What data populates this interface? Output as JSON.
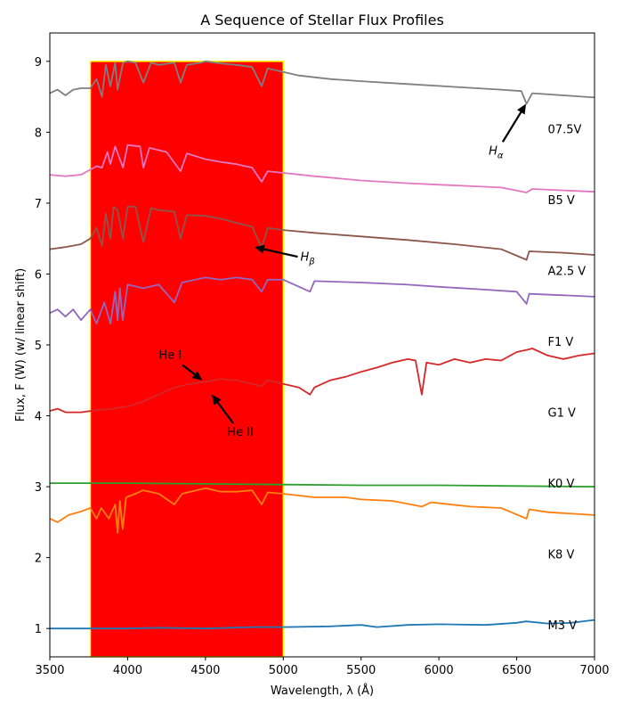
{
  "chart_data": {
    "type": "line",
    "title": "A Sequence of Stellar Flux Profiles",
    "xlabel": "Wavelength, λ (Å)",
    "ylabel": "Flux, F (W) (w/ linear shift)",
    "xlim": [
      3500,
      7000
    ],
    "ylim": [
      0.6,
      9.4
    ],
    "x_ticks": [
      3500,
      4000,
      4500,
      5000,
      5500,
      6000,
      6500,
      7000
    ],
    "y_ticks": [
      1,
      2,
      3,
      4,
      5,
      6,
      7,
      8,
      9
    ],
    "grid": false,
    "highlight_band": {
      "x": [
        3760,
        5000
      ],
      "y": [
        0.6,
        9.0
      ],
      "fill": "#ff0000",
      "edge": "#ffff00"
    },
    "series": [
      {
        "name": "M3 V",
        "color": "#1f77b4",
        "label_pos": [
          6700,
          1.05
        ],
        "points": [
          [
            3500,
            1.0
          ],
          [
            3800,
            1.0
          ],
          [
            4000,
            1.0
          ],
          [
            4200,
            1.01
          ],
          [
            4500,
            1.0
          ],
          [
            4800,
            1.02
          ],
          [
            5000,
            1.02
          ],
          [
            5300,
            1.03
          ],
          [
            5500,
            1.05
          ],
          [
            5600,
            1.02
          ],
          [
            5800,
            1.05
          ],
          [
            6000,
            1.06
          ],
          [
            6300,
            1.05
          ],
          [
            6500,
            1.08
          ],
          [
            6560,
            1.1
          ],
          [
            6700,
            1.07
          ],
          [
            6850,
            1.08
          ],
          [
            7000,
            1.12
          ]
        ]
      },
      {
        "name": "K8 V",
        "color": "#ff7f0e",
        "label_pos": [
          6700,
          2.05
        ],
        "points": [
          [
            3500,
            2.55
          ],
          [
            3550,
            2.5
          ],
          [
            3620,
            2.6
          ],
          [
            3700,
            2.65
          ],
          [
            3760,
            2.7
          ],
          [
            3800,
            2.55
          ],
          [
            3830,
            2.7
          ],
          [
            3880,
            2.55
          ],
          [
            3920,
            2.75
          ],
          [
            3935,
            2.35
          ],
          [
            3950,
            2.8
          ],
          [
            3968,
            2.4
          ],
          [
            3990,
            2.85
          ],
          [
            4050,
            2.9
          ],
          [
            4100,
            2.95
          ],
          [
            4200,
            2.9
          ],
          [
            4300,
            2.75
          ],
          [
            4350,
            2.9
          ],
          [
            4500,
            2.98
          ],
          [
            4600,
            2.93
          ],
          [
            4700,
            2.93
          ],
          [
            4800,
            2.95
          ],
          [
            4861,
            2.75
          ],
          [
            4900,
            2.92
          ],
          [
            5000,
            2.9
          ],
          [
            5200,
            2.85
          ],
          [
            5400,
            2.85
          ],
          [
            5500,
            2.82
          ],
          [
            5700,
            2.8
          ],
          [
            5890,
            2.72
          ],
          [
            5950,
            2.78
          ],
          [
            6200,
            2.72
          ],
          [
            6400,
            2.7
          ],
          [
            6563,
            2.55
          ],
          [
            6580,
            2.68
          ],
          [
            6700,
            2.64
          ],
          [
            7000,
            2.6
          ]
        ]
      },
      {
        "name": "K0 V",
        "color": "#2ca02c",
        "label_pos": [
          6700,
          3.05
        ],
        "points": [
          [
            3500,
            3.05
          ],
          [
            4000,
            3.05
          ],
          [
            4500,
            3.04
          ],
          [
            5000,
            3.03
          ],
          [
            5500,
            3.02
          ],
          [
            6000,
            3.02
          ],
          [
            6500,
            3.01
          ],
          [
            7000,
            3.0
          ]
        ]
      },
      {
        "name": "G1 V",
        "color": "#d62728",
        "label_pos": [
          6700,
          4.05
        ],
        "points": [
          [
            3500,
            4.07
          ],
          [
            3550,
            4.1
          ],
          [
            3600,
            4.05
          ],
          [
            3700,
            4.05
          ],
          [
            3800,
            4.08
          ],
          [
            3900,
            4.1
          ],
          [
            4000,
            4.13
          ],
          [
            4100,
            4.2
          ],
          [
            4200,
            4.3
          ],
          [
            4300,
            4.4
          ],
          [
            4400,
            4.45
          ],
          [
            4500,
            4.48
          ],
          [
            4600,
            4.52
          ],
          [
            4700,
            4.5
          ],
          [
            4800,
            4.45
          ],
          [
            4861,
            4.42
          ],
          [
            4900,
            4.5
          ],
          [
            5000,
            4.45
          ],
          [
            5100,
            4.4
          ],
          [
            5172,
            4.3
          ],
          [
            5200,
            4.4
          ],
          [
            5300,
            4.5
          ],
          [
            5400,
            4.55
          ],
          [
            5500,
            4.62
          ],
          [
            5600,
            4.68
          ],
          [
            5700,
            4.75
          ],
          [
            5800,
            4.8
          ],
          [
            5850,
            4.78
          ],
          [
            5890,
            4.3
          ],
          [
            5920,
            4.75
          ],
          [
            6000,
            4.72
          ],
          [
            6100,
            4.8
          ],
          [
            6200,
            4.75
          ],
          [
            6300,
            4.8
          ],
          [
            6400,
            4.78
          ],
          [
            6500,
            4.9
          ],
          [
            6563,
            4.93
          ],
          [
            6600,
            4.95
          ],
          [
            6700,
            4.85
          ],
          [
            6800,
            4.8
          ],
          [
            6900,
            4.85
          ],
          [
            7000,
            4.88
          ]
        ]
      },
      {
        "name": "F1 V",
        "color": "#9467bd",
        "label_pos": [
          6700,
          5.05
        ],
        "points": [
          [
            3500,
            5.45
          ],
          [
            3550,
            5.5
          ],
          [
            3600,
            5.4
          ],
          [
            3650,
            5.5
          ],
          [
            3700,
            5.35
          ],
          [
            3760,
            5.5
          ],
          [
            3800,
            5.3
          ],
          [
            3850,
            5.6
          ],
          [
            3890,
            5.3
          ],
          [
            3920,
            5.75
          ],
          [
            3935,
            5.35
          ],
          [
            3950,
            5.8
          ],
          [
            3968,
            5.35
          ],
          [
            4000,
            5.85
          ],
          [
            4100,
            5.8
          ],
          [
            4200,
            5.85
          ],
          [
            4300,
            5.6
          ],
          [
            4350,
            5.88
          ],
          [
            4500,
            5.95
          ],
          [
            4600,
            5.92
          ],
          [
            4700,
            5.95
          ],
          [
            4800,
            5.92
          ],
          [
            4861,
            5.75
          ],
          [
            4900,
            5.92
          ],
          [
            5000,
            5.92
          ],
          [
            5172,
            5.75
          ],
          [
            5200,
            5.9
          ],
          [
            5500,
            5.88
          ],
          [
            5800,
            5.85
          ],
          [
            6000,
            5.82
          ],
          [
            6300,
            5.78
          ],
          [
            6500,
            5.75
          ],
          [
            6563,
            5.58
          ],
          [
            6580,
            5.72
          ],
          [
            6800,
            5.7
          ],
          [
            7000,
            5.68
          ]
        ]
      },
      {
        "name": "A2.5 V",
        "color": "#8c564b",
        "label_pos": [
          6700,
          6.05
        ],
        "points": [
          [
            3500,
            6.35
          ],
          [
            3600,
            6.38
          ],
          [
            3700,
            6.42
          ],
          [
            3760,
            6.5
          ],
          [
            3800,
            6.65
          ],
          [
            3835,
            6.4
          ],
          [
            3860,
            6.85
          ],
          [
            3889,
            6.5
          ],
          [
            3910,
            6.95
          ],
          [
            3935,
            6.9
          ],
          [
            3970,
            6.5
          ],
          [
            4000,
            6.95
          ],
          [
            4050,
            6.95
          ],
          [
            4101,
            6.45
          ],
          [
            4150,
            6.93
          ],
          [
            4200,
            6.9
          ],
          [
            4300,
            6.88
          ],
          [
            4340,
            6.5
          ],
          [
            4380,
            6.83
          ],
          [
            4500,
            6.82
          ],
          [
            4600,
            6.78
          ],
          [
            4700,
            6.72
          ],
          [
            4800,
            6.67
          ],
          [
            4861,
            6.37
          ],
          [
            4900,
            6.65
          ],
          [
            5000,
            6.62
          ],
          [
            5200,
            6.58
          ],
          [
            5500,
            6.53
          ],
          [
            5800,
            6.48
          ],
          [
            6100,
            6.42
          ],
          [
            6400,
            6.35
          ],
          [
            6563,
            6.2
          ],
          [
            6580,
            6.32
          ],
          [
            6800,
            6.3
          ],
          [
            7000,
            6.27
          ]
        ]
      },
      {
        "name": "B5 V",
        "color": "#e377c2",
        "label_pos": [
          6700,
          7.05
        ],
        "points": [
          [
            3500,
            7.4
          ],
          [
            3600,
            7.38
          ],
          [
            3700,
            7.4
          ],
          [
            3800,
            7.52
          ],
          [
            3835,
            7.5
          ],
          [
            3870,
            7.72
          ],
          [
            3889,
            7.55
          ],
          [
            3920,
            7.8
          ],
          [
            3970,
            7.5
          ],
          [
            4000,
            7.82
          ],
          [
            4080,
            7.8
          ],
          [
            4101,
            7.5
          ],
          [
            4140,
            7.78
          ],
          [
            4250,
            7.72
          ],
          [
            4340,
            7.45
          ],
          [
            4380,
            7.7
          ],
          [
            4500,
            7.62
          ],
          [
            4600,
            7.58
          ],
          [
            4700,
            7.55
          ],
          [
            4800,
            7.5
          ],
          [
            4861,
            7.3
          ],
          [
            4900,
            7.45
          ],
          [
            5200,
            7.38
          ],
          [
            5500,
            7.32
          ],
          [
            5800,
            7.28
          ],
          [
            6100,
            7.25
          ],
          [
            6400,
            7.22
          ],
          [
            6563,
            7.15
          ],
          [
            6600,
            7.2
          ],
          [
            7000,
            7.16
          ]
        ]
      },
      {
        "name": "07.5V",
        "color": "#7f7f7f",
        "label_pos": [
          6700,
          8.05
        ],
        "points": [
          [
            3500,
            8.55
          ],
          [
            3550,
            8.6
          ],
          [
            3600,
            8.52
          ],
          [
            3650,
            8.6
          ],
          [
            3700,
            8.62
          ],
          [
            3760,
            8.62
          ],
          [
            3800,
            8.75
          ],
          [
            3835,
            8.5
          ],
          [
            3860,
            8.95
          ],
          [
            3889,
            8.65
          ],
          [
            3920,
            8.98
          ],
          [
            3935,
            8.6
          ],
          [
            3970,
            8.98
          ],
          [
            4000,
            9.0
          ],
          [
            4050,
            8.98
          ],
          [
            4101,
            8.7
          ],
          [
            4150,
            8.98
          ],
          [
            4200,
            8.95
          ],
          [
            4300,
            8.98
          ],
          [
            4340,
            8.7
          ],
          [
            4380,
            8.95
          ],
          [
            4470,
            8.98
          ],
          [
            4500,
            9.0
          ],
          [
            4600,
            8.97
          ],
          [
            4700,
            8.95
          ],
          [
            4800,
            8.92
          ],
          [
            4861,
            8.65
          ],
          [
            4900,
            8.9
          ],
          [
            5000,
            8.85
          ],
          [
            5100,
            8.8
          ],
          [
            5300,
            8.75
          ],
          [
            5500,
            8.72
          ],
          [
            5800,
            8.68
          ],
          [
            6100,
            8.64
          ],
          [
            6400,
            8.6
          ],
          [
            6530,
            8.58
          ],
          [
            6563,
            8.4
          ],
          [
            6600,
            8.55
          ],
          [
            6800,
            8.52
          ],
          [
            7000,
            8.49
          ]
        ]
      }
    ],
    "annotations": [
      {
        "id": "h-alpha",
        "label": "Hα",
        "main": "H",
        "sub": "α",
        "text_pos": [
          6320,
          7.75
        ],
        "tip": [
          6560,
          8.4
        ]
      },
      {
        "id": "h-beta",
        "label": "Hβ",
        "main": "H",
        "sub": "β",
        "text_pos": [
          5110,
          6.25
        ],
        "tip": [
          4815,
          6.38
        ]
      },
      {
        "id": "he-i",
        "label": "He I",
        "main": "He I",
        "sub": "",
        "text_pos": [
          4200,
          4.87
        ],
        "tip": [
          4480,
          4.5
        ]
      },
      {
        "id": "he-ii",
        "label": "He II",
        "main": "He II",
        "sub": "",
        "text_pos": [
          4640,
          3.78
        ],
        "tip": [
          4540,
          4.3
        ]
      }
    ]
  }
}
